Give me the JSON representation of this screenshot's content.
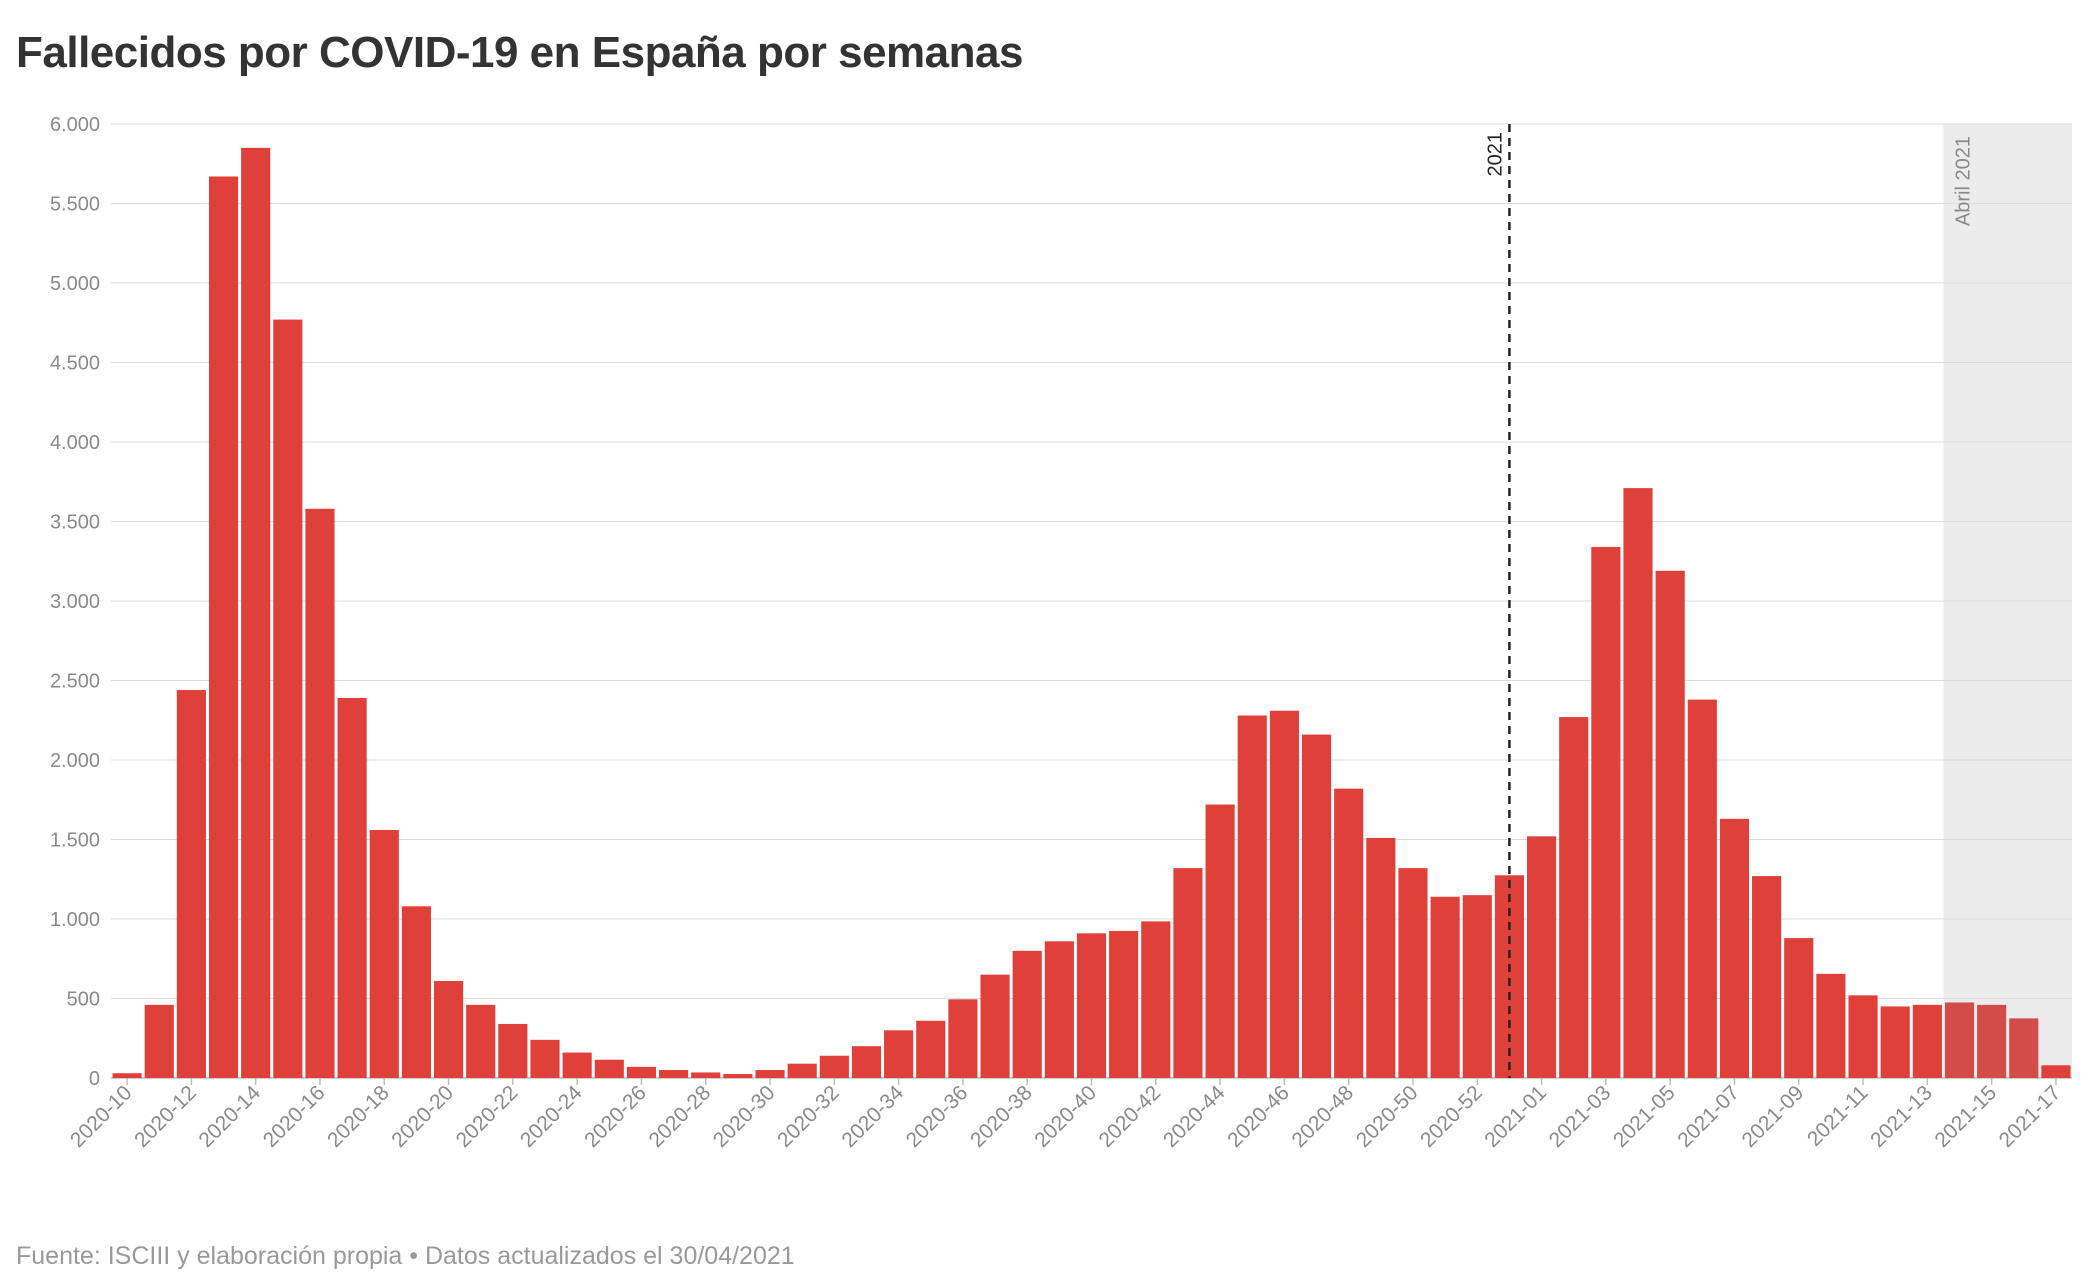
{
  "chart_data": {
    "type": "bar",
    "title": "Fallecidos por COVID-19 en España por semanas",
    "xlabel": "",
    "ylabel": "",
    "ylim": [
      0,
      6000
    ],
    "y_ticks": [
      0,
      500,
      1000,
      1500,
      2000,
      2500,
      3000,
      3500,
      4000,
      4500,
      5000,
      5500,
      6000
    ],
    "y_tick_labels": [
      "0",
      "500",
      "1.000",
      "1.500",
      "2.000",
      "2.500",
      "3.000",
      "3.500",
      "4.000",
      "4.500",
      "5.000",
      "5.500",
      "6.000"
    ],
    "grid": true,
    "bar_color": "#e0403a",
    "highlight_color": "#d24d49",
    "shade_color": "#ececec",
    "categories": [
      "2020-10",
      "2020-11",
      "2020-12",
      "2020-13",
      "2020-14",
      "2020-15",
      "2020-16",
      "2020-17",
      "2020-18",
      "2020-19",
      "2020-20",
      "2020-21",
      "2020-22",
      "2020-23",
      "2020-24",
      "2020-25",
      "2020-26",
      "2020-27",
      "2020-28",
      "2020-29",
      "2020-30",
      "2020-31",
      "2020-32",
      "2020-33",
      "2020-34",
      "2020-35",
      "2020-36",
      "2020-37",
      "2020-38",
      "2020-39",
      "2020-40",
      "2020-41",
      "2020-42",
      "2020-43",
      "2020-44",
      "2020-45",
      "2020-46",
      "2020-47",
      "2020-48",
      "2020-49",
      "2020-50",
      "2020-51",
      "2020-52",
      "2020-53",
      "2021-01",
      "2021-02",
      "2021-03",
      "2021-04",
      "2021-05",
      "2021-06",
      "2021-07",
      "2021-08",
      "2021-09",
      "2021-10",
      "2021-11",
      "2021-12",
      "2021-13",
      "2021-14",
      "2021-15",
      "2021-16",
      "2021-17"
    ],
    "x_tick_labels": [
      "2020-10",
      "2020-12",
      "2020-14",
      "2020-16",
      "2020-18",
      "2020-20",
      "2020-22",
      "2020-24",
      "2020-26",
      "2020-28",
      "2020-30",
      "2020-32",
      "2020-34",
      "2020-36",
      "2020-38",
      "2020-40",
      "2020-42",
      "2020-44",
      "2020-46",
      "2020-48",
      "2020-50",
      "2020-52",
      "2021-01",
      "2021-03",
      "2021-05",
      "2021-07",
      "2021-09",
      "2021-11",
      "2021-13",
      "2021-15",
      "2021-17"
    ],
    "values": [
      30,
      460,
      2440,
      5670,
      5850,
      4770,
      3580,
      2390,
      1560,
      1080,
      610,
      460,
      340,
      240,
      160,
      115,
      70,
      50,
      35,
      25,
      50,
      90,
      140,
      200,
      300,
      360,
      495,
      650,
      800,
      860,
      910,
      925,
      985,
      1320,
      1720,
      2280,
      2310,
      2160,
      1820,
      1510,
      1320,
      1140,
      1150,
      1275,
      1520,
      2270,
      3340,
      3710,
      3190,
      2380,
      1630,
      1270,
      880,
      655,
      520,
      450,
      460,
      475,
      460,
      375,
      80
    ],
    "annotations": [
      {
        "type": "line",
        "category": "2020-53",
        "label": "2021",
        "style": "dashed"
      },
      {
        "type": "band",
        "from": "2021-14",
        "to": "2021-17",
        "label": "Abril 2021"
      }
    ]
  },
  "source": "Fuente: ISCIII y elaboración propia • Datos actualizados el 30/04/2021"
}
